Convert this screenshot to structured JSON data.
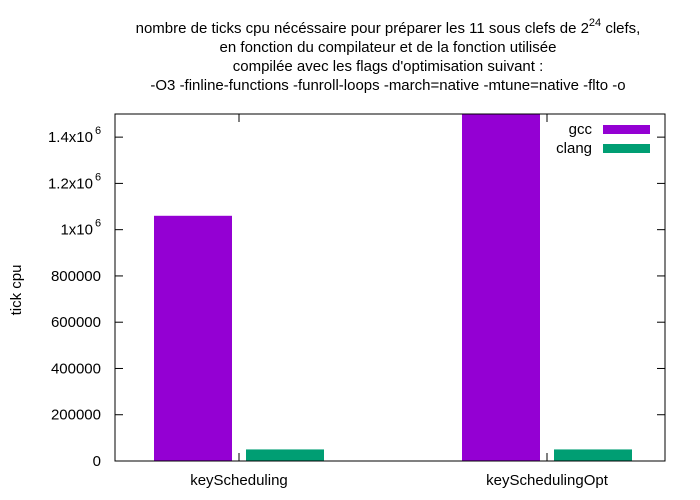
{
  "chart_data": {
    "type": "bar",
    "title_lines": [
      "nombre de ticks cpu nécéssaire pour préparer les 11 sous clefs de 2",
      "en fonction du compilateur et de la fonction utilisée",
      "compilée avec les flags d'optimisation suivant :",
      "-O3 -finline-functions -funroll-loops -march=native -mtune=native -flto -o"
    ],
    "title_exponent": "24",
    "title_suffix": " clefs,",
    "ylabel": "tick cpu",
    "xlabel": "",
    "categories": [
      "keyScheduling",
      "keySchedulingOpt"
    ],
    "series": [
      {
        "name": "gcc",
        "color": "#9400d3",
        "values": [
          1060000,
          1500000
        ]
      },
      {
        "name": "clang",
        "color": "#009e73",
        "values": [
          50000,
          50000
        ]
      }
    ],
    "ylim": [
      0,
      1500000
    ],
    "y_ticks": [
      {
        "value": 0,
        "label": "0",
        "exp": ""
      },
      {
        "value": 200000,
        "label": "200000",
        "exp": ""
      },
      {
        "value": 400000,
        "label": "400000",
        "exp": ""
      },
      {
        "value": 600000,
        "label": "600000",
        "exp": ""
      },
      {
        "value": 800000,
        "label": "800000",
        "exp": ""
      },
      {
        "value": 1000000,
        "label": "1x10",
        "exp": "6"
      },
      {
        "value": 1200000,
        "label": "1.2x10",
        "exp": "6"
      },
      {
        "value": 1400000,
        "label": "1.4x10",
        "exp": "6"
      }
    ],
    "legend_position": "top-right",
    "grid": false
  }
}
